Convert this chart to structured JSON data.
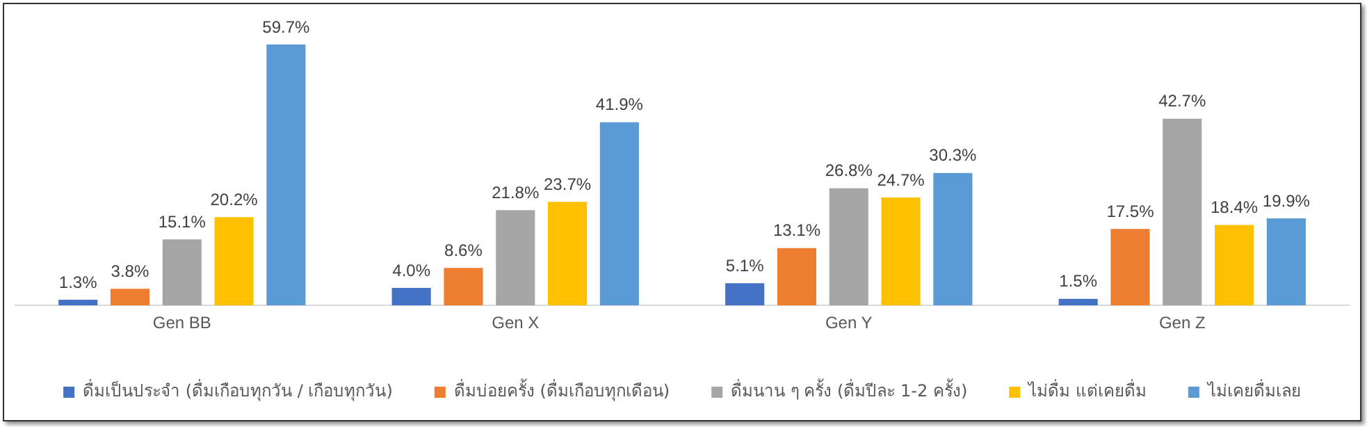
{
  "chart_data": {
    "type": "bar",
    "categories": [
      "Gen BB",
      "Gen X",
      "Gen Y",
      "Gen Z"
    ],
    "series": [
      {
        "name": "ดื่มเป็นประจำ (ดื่มเกือบทุกวัน / เกือบทุกวัน)",
        "color": "#4472c4",
        "values": [
          1.3,
          4.0,
          5.1,
          1.5
        ],
        "value_labels": [
          "1.3%",
          "4.0%",
          "5.1%",
          "1.5%"
        ]
      },
      {
        "name": "ดื่มบ่อยครั้ง (ดื่มเกือบทุกเดือน)",
        "color": "#ed7d31",
        "values": [
          3.8,
          8.6,
          13.1,
          17.5
        ],
        "value_labels": [
          "3.8%",
          "8.6%",
          "13.1%",
          "17.5%"
        ]
      },
      {
        "name": "ดื่มนาน ๆ ครั้ง (ดื่มปีละ 1-2 ครั้ง)",
        "color": "#a5a5a5",
        "values": [
          15.1,
          21.8,
          26.8,
          42.7
        ],
        "value_labels": [
          "15.1%",
          "21.8%",
          "26.8%",
          "42.7%"
        ]
      },
      {
        "name": "ไม่ดื่ม แต่เคยดื่ม",
        "color": "#ffc000",
        "values": [
          20.2,
          23.7,
          24.7,
          18.4
        ],
        "value_labels": [
          "20.2%",
          "23.7%",
          "24.7%",
          "18.4%"
        ]
      },
      {
        "name": "ไม่เคยดื่มเลย",
        "color": "#5b9bd5",
        "values": [
          59.7,
          41.9,
          30.3,
          19.9
        ],
        "value_labels": [
          "59.7%",
          "41.9%",
          "30.3%",
          "19.9%"
        ]
      }
    ],
    "legend": "bottom"
  }
}
